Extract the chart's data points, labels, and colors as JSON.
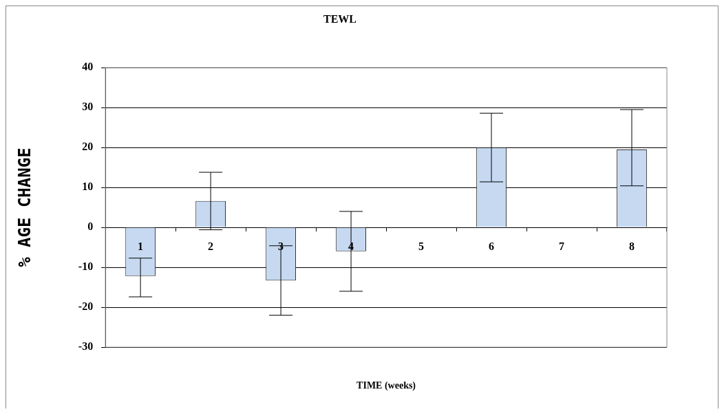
{
  "chart_data": {
    "type": "bar",
    "title": "TEWL",
    "xlabel": "TIME (weeks)",
    "ylabel": "% AGE CHANGE",
    "categories": [
      "1",
      "2",
      "3",
      "4",
      "5",
      "6",
      "7",
      "8"
    ],
    "values": [
      -12.2,
      6.6,
      -13.3,
      -6.0,
      null,
      20.0,
      null,
      19.5
    ],
    "errors": [
      [
        -17.4,
        -7.7
      ],
      7.2,
      8.7,
      10,
      null,
      8.6,
      null,
      [
        10.4,
        29.5
      ]
    ],
    "color": "#c6d9f1",
    "ylim": [
      -30,
      40
    ],
    "yticks": [
      -30,
      -20,
      -10,
      0,
      10,
      20,
      30,
      40
    ],
    "grid": "y",
    "legend": false
  }
}
